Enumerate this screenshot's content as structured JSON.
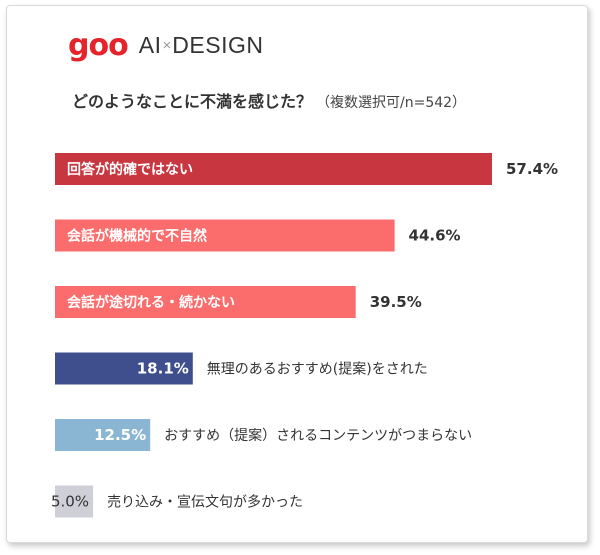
{
  "logo": {
    "brand": "goo",
    "separator": "×",
    "product_left": "AI",
    "product_right": "DESIGN"
  },
  "question": {
    "text": "どのようなことに不満を感じた？",
    "note": "（複数選択可/n=542）"
  },
  "chart_data": {
    "type": "bar",
    "orientation": "horizontal",
    "title": "どのようなことに不満を感じた？",
    "subtitle": "（複数選択可/n=542）",
    "xlabel": "",
    "ylabel": "",
    "xlim": [
      0,
      57.4
    ],
    "grid": false,
    "legend": "none",
    "unit": "%",
    "categories": [
      "回答が的確ではない",
      "会話が機械的で不自然",
      "会話が途切れる・続かない",
      "無理のあるおすすめ(提案)をされた",
      "おすすめ（提案）されるコンテンツがつまらない",
      "売り込み・宣伝文句が多かった"
    ],
    "values": [
      57.4,
      44.6,
      39.5,
      18.1,
      12.5,
      5.0
    ],
    "value_labels": [
      "57.4%",
      "44.6%",
      "39.5%",
      "18.1%",
      "12.5%",
      "5.0%"
    ],
    "colors": [
      "#c8373f",
      "#fb6c6c",
      "#fb6c6c",
      "#3f4f8e",
      "#8bb6d3",
      "#cfcfd8"
    ]
  }
}
